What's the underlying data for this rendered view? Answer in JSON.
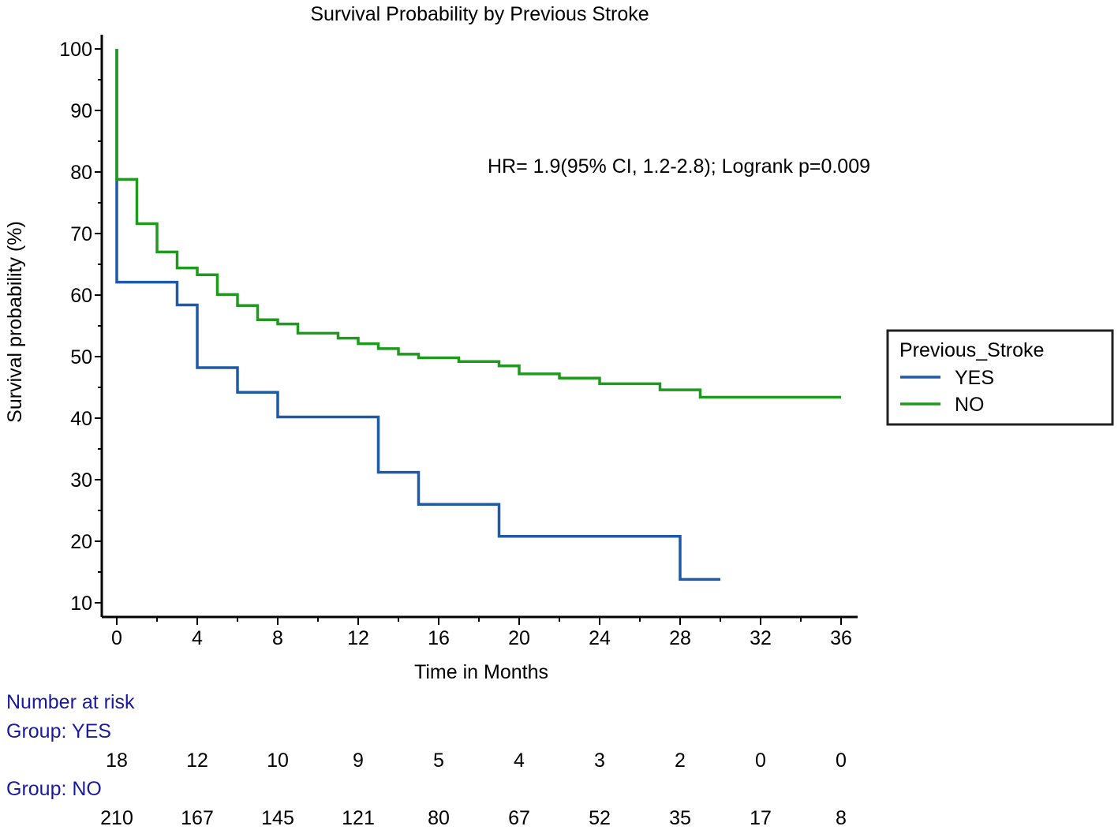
{
  "chart_data": {
    "type": "line",
    "subtype": "kaplan-meier step",
    "title": "Survival Probability by Previous Stroke",
    "xlabel": "Time in Months",
    "ylabel": "Survival probability (%)",
    "xlim": [
      0,
      36
    ],
    "ylim": [
      10,
      100
    ],
    "x_ticks": [
      0,
      4,
      8,
      12,
      16,
      20,
      24,
      28,
      32,
      36
    ],
    "x_tick_labels": [
      "0",
      "4",
      "8",
      "12",
      "16",
      "20",
      "24",
      "28",
      "32",
      "36"
    ],
    "y_ticks": [
      10,
      20,
      30,
      40,
      50,
      60,
      70,
      80,
      90,
      100
    ],
    "y_tick_labels": [
      "10",
      "20",
      "30",
      "40",
      "50",
      "60",
      "70",
      "80",
      "90",
      "100"
    ],
    "grid": false,
    "annotation": "HR= 1.9(95% CI, 1.2-2.8); Logrank p=0.009",
    "legend": {
      "title": "Previous_Stroke",
      "placement": "right",
      "entries": [
        "YES",
        "NO"
      ]
    },
    "series": [
      {
        "name": "YES",
        "color": "#1f5aa6",
        "steps": [
          [
            0,
            100
          ],
          [
            0,
            62.1
          ],
          [
            3,
            58.4
          ],
          [
            4,
            48.2
          ],
          [
            6,
            44.2
          ],
          [
            8,
            40.2
          ],
          [
            13,
            31.2
          ],
          [
            15,
            26.0
          ],
          [
            19,
            20.8
          ],
          [
            28,
            13.8
          ]
        ],
        "end_x": 30
      },
      {
        "name": "NO",
        "color": "#1f9a1f",
        "steps": [
          [
            0,
            100
          ],
          [
            0,
            78.8
          ],
          [
            1,
            71.6
          ],
          [
            2,
            67.0
          ],
          [
            3,
            64.4
          ],
          [
            4,
            63.3
          ],
          [
            5,
            60.1
          ],
          [
            6,
            58.3
          ],
          [
            7,
            56.0
          ],
          [
            8,
            55.3
          ],
          [
            9,
            53.8
          ],
          [
            11,
            53.0
          ],
          [
            12,
            52.1
          ],
          [
            13,
            51.3
          ],
          [
            14,
            50.4
          ],
          [
            15,
            49.8
          ],
          [
            17,
            49.2
          ],
          [
            19,
            48.5
          ],
          [
            20,
            47.2
          ],
          [
            22,
            46.5
          ],
          [
            24,
            45.6
          ],
          [
            27,
            44.6
          ],
          [
            29,
            43.4
          ]
        ],
        "end_x": 36
      }
    ],
    "number_at_risk": {
      "heading": "Number at risk",
      "groups": [
        {
          "label": "Group: YES",
          "values": [
            "18",
            "12",
            "10",
            "9",
            "5",
            "4",
            "3",
            "2",
            "0",
            "0"
          ]
        },
        {
          "label": "Group: NO",
          "values": [
            "210",
            "167",
            "145",
            "121",
            "80",
            "67",
            "52",
            "35",
            "17",
            "8"
          ]
        }
      ]
    }
  }
}
